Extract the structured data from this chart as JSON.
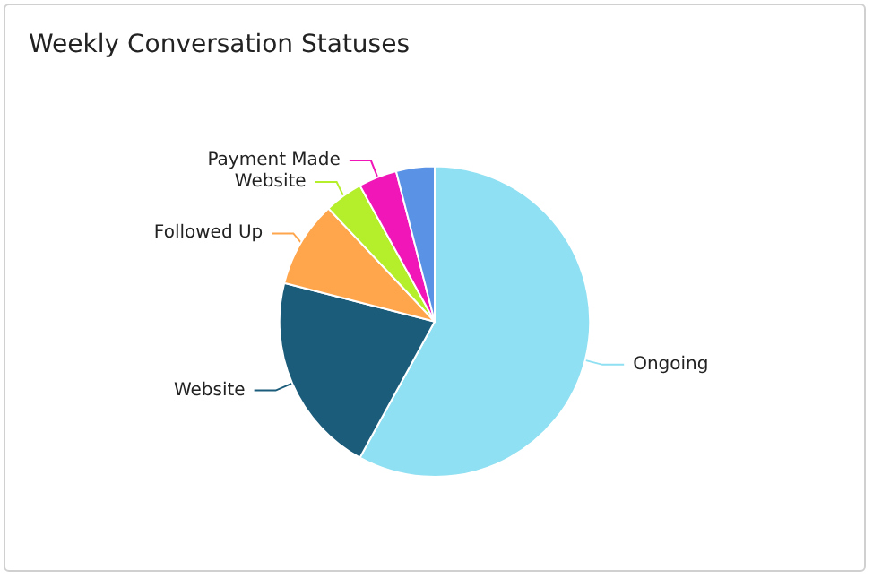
{
  "chart_data": {
    "type": "pie",
    "title": "Weekly Conversation Statuses",
    "categories": [
      "Ongoing",
      "Website",
      "Followed Up",
      "Website",
      "Payment Made",
      null
    ],
    "values": [
      58,
      21,
      9,
      4,
      4,
      4
    ],
    "colors": [
      "#8fe0f2",
      "#1b5c7a",
      "#ffa64d",
      "#b5ef2c",
      "#f016b8",
      "#5a93e6"
    ],
    "legend": false
  }
}
